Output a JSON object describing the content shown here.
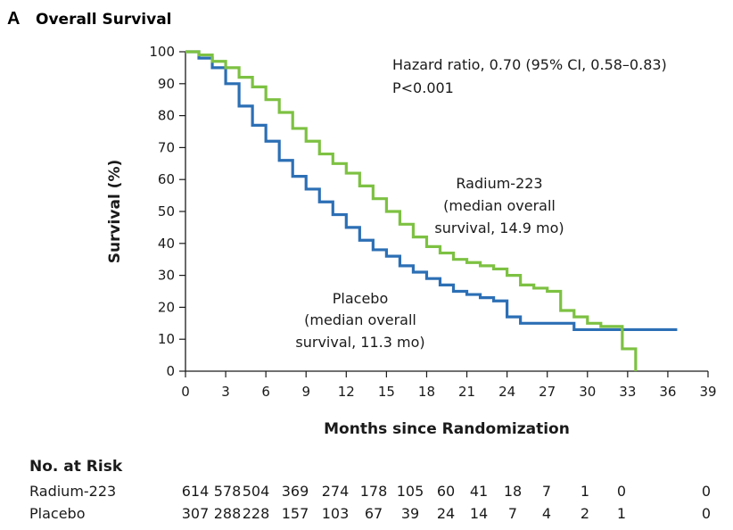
{
  "panel": {
    "letter": "A",
    "title": "Overall Survival"
  },
  "chart_data": {
    "type": "line",
    "title": "Overall Survival",
    "xlabel": "Months since Randomization",
    "ylabel": "Survival (%)",
    "xlim": [
      0,
      39
    ],
    "ylim": [
      0,
      100
    ],
    "xticks": [
      0,
      3,
      6,
      9,
      12,
      15,
      18,
      21,
      24,
      27,
      30,
      33,
      36,
      39
    ],
    "yticks": [
      0,
      10,
      20,
      30,
      40,
      50,
      60,
      70,
      80,
      90,
      100
    ],
    "series": [
      {
        "name": "Radium-223",
        "color": "#7dc142",
        "x": [
          0,
          1,
          2,
          3,
          4,
          5,
          6,
          7,
          8,
          9,
          10,
          11,
          12,
          13,
          14,
          15,
          16,
          17,
          18,
          19,
          20,
          21,
          22,
          23,
          24,
          25,
          26,
          27,
          28,
          29,
          30,
          31,
          32,
          32.6,
          33.6
        ],
        "y": [
          100,
          99,
          97,
          95,
          92,
          89,
          85,
          81,
          76,
          72,
          68,
          65,
          62,
          58,
          54,
          50,
          46,
          42,
          39,
          37,
          35,
          34,
          33,
          32,
          30,
          27,
          26,
          25,
          19,
          17,
          15,
          14,
          14,
          7,
          0
        ]
      },
      {
        "name": "Placebo",
        "color": "#2c6fb5",
        "x": [
          0,
          1,
          2,
          3,
          4,
          5,
          6,
          7,
          8,
          9,
          10,
          11,
          12,
          13,
          14,
          15,
          16,
          17,
          18,
          19,
          20,
          21,
          22,
          23,
          24,
          25,
          26,
          27,
          28,
          29,
          30,
          31,
          32,
          33,
          34,
          35,
          36.7
        ],
        "y": [
          100,
          98,
          95,
          90,
          83,
          77,
          72,
          66,
          61,
          57,
          53,
          49,
          45,
          41,
          38,
          36,
          33,
          31,
          29,
          27,
          25,
          24,
          23,
          22,
          17,
          15,
          15,
          15,
          15,
          13,
          13,
          13,
          13,
          13,
          13,
          13,
          13
        ]
      }
    ],
    "annotations": {
      "hazard": "Hazard ratio, 0.70 (95% CI, 0.58–0.83)",
      "pvalue": "P<0.001",
      "radium_1": "Radium-223",
      "radium_2": "(median overall",
      "radium_3": "survival, 14.9 mo)",
      "placebo_1": "Placebo",
      "placebo_2": "(median overall",
      "placebo_3": "survival, 11.3 mo)"
    }
  },
  "risk_table": {
    "title": "No. at Risk",
    "rows": [
      {
        "label": "Radium-223",
        "values": [
          614,
          578,
          504,
          369,
          274,
          178,
          105,
          60,
          41,
          18,
          7,
          1,
          0,
          0
        ]
      },
      {
        "label": "Placebo",
        "values": [
          307,
          288,
          228,
          157,
          103,
          67,
          39,
          24,
          14,
          7,
          4,
          2,
          1,
          0
        ]
      }
    ]
  }
}
